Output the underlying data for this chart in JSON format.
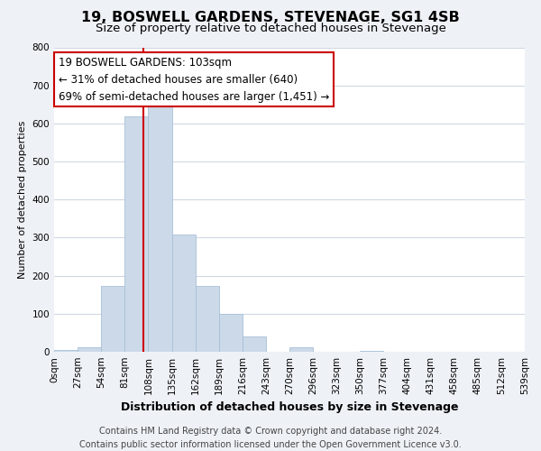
{
  "title": "19, BOSWELL GARDENS, STEVENAGE, SG1 4SB",
  "subtitle": "Size of property relative to detached houses in Stevenage",
  "xlabel": "Distribution of detached houses by size in Stevenage",
  "ylabel": "Number of detached properties",
  "bin_labels": [
    "0sqm",
    "27sqm",
    "54sqm",
    "81sqm",
    "108sqm",
    "135sqm",
    "162sqm",
    "189sqm",
    "216sqm",
    "243sqm",
    "270sqm",
    "296sqm",
    "323sqm",
    "350sqm",
    "377sqm",
    "404sqm",
    "431sqm",
    "458sqm",
    "485sqm",
    "512sqm",
    "539sqm"
  ],
  "bar_values": [
    5,
    12,
    172,
    618,
    651,
    307,
    173,
    99,
    41,
    0,
    13,
    0,
    0,
    2,
    0,
    0,
    0,
    0,
    0,
    0
  ],
  "bar_color": "#ccd9e8",
  "bar_edgecolor": "#a8c0d8",
  "vline_color": "#cc0000",
  "vline_x_data": 3.81,
  "annotation_line1": "19 BOSWELL GARDENS: 103sqm",
  "annotation_line2": "← 31% of detached houses are smaller (640)",
  "annotation_line3": "69% of semi-detached houses are larger (1,451) →",
  "annotation_box_edgecolor": "#cc0000",
  "annotation_box_facecolor": "#ffffff",
  "ylim": [
    0,
    800
  ],
  "yticks": [
    0,
    100,
    200,
    300,
    400,
    500,
    600,
    700,
    800
  ],
  "footer_line1": "Contains HM Land Registry data © Crown copyright and database right 2024.",
  "footer_line2": "Contains public sector information licensed under the Open Government Licence v3.0.",
  "background_color": "#eef2f7",
  "plot_background_color": "#ffffff",
  "grid_color": "#d0d8e4",
  "title_fontsize": 11.5,
  "subtitle_fontsize": 9.5,
  "xlabel_fontsize": 9,
  "ylabel_fontsize": 8,
  "tick_fontsize": 7.5,
  "footer_fontsize": 7,
  "annotation_fontsize": 8.5
}
